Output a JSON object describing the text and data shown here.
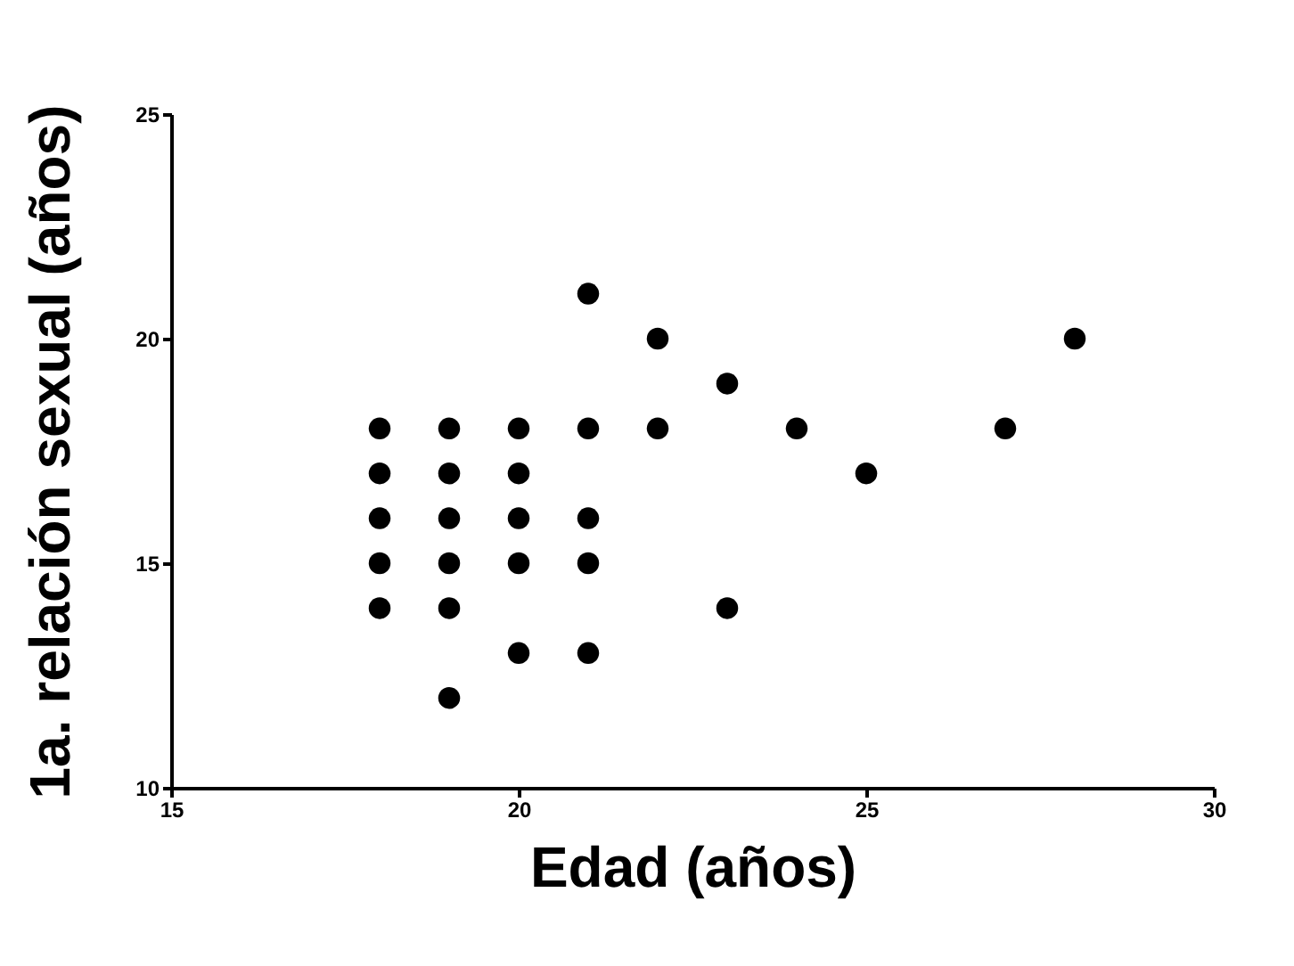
{
  "chart_data": {
    "type": "scatter",
    "xlabel": "Edad (años)",
    "ylabel": "1a. relación sexual (años)",
    "x": [
      18,
      18,
      18,
      18,
      18,
      19,
      19,
      19,
      19,
      19,
      19,
      20,
      20,
      20,
      20,
      20,
      21,
      21,
      21,
      21,
      21,
      22,
      22,
      23,
      23,
      24,
      25,
      27,
      28
    ],
    "series": [
      {
        "color": "#000000",
        "values": [
          14,
          15,
          16,
          17,
          18,
          12,
          14,
          15,
          16,
          17,
          18,
          13,
          15,
          16,
          17,
          18,
          13,
          15,
          16,
          18,
          21,
          18,
          20,
          14,
          19,
          18,
          17,
          18,
          20
        ]
      }
    ],
    "xlim": [
      15,
      30
    ],
    "xticks": [
      15,
      20,
      25,
      30
    ],
    "ylim": [
      10,
      25
    ],
    "yticks": [
      10,
      15,
      20,
      25
    ],
    "grid": false,
    "legend": false,
    "marker": "circle"
  }
}
